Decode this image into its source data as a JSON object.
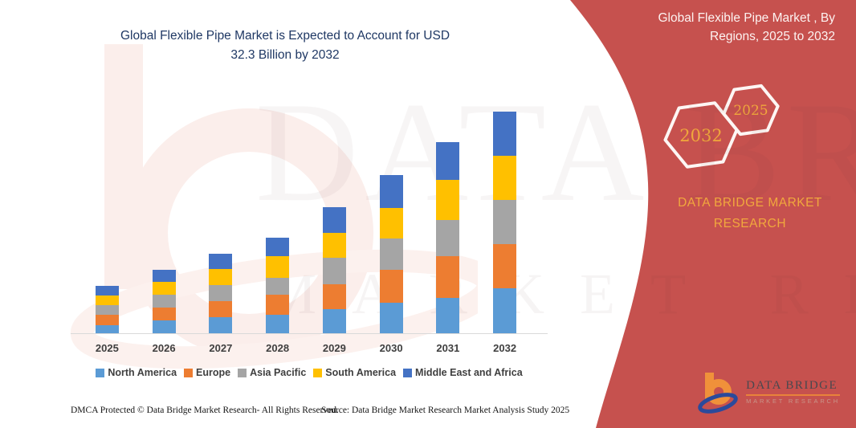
{
  "page": {
    "title_line1": "Global Flexible Pipe Market is Expected to Account for USD",
    "title_line2": "32.3 Billion by 2032"
  },
  "banner": {
    "heading_line1": "Global Flexible Pipe Market , By",
    "heading_line2": "Regions, 2025 to 2032",
    "hex_back_label": "2032",
    "hex_front_label": "2025",
    "brand_line1": "DATA BRIDGE MARKET",
    "brand_line2": "RESEARCH",
    "background_color": "#c6514e",
    "accent_text_color": "#f0a73c"
  },
  "chart_data": {
    "type": "bar",
    "stacked": true,
    "title": "Global Flexible Pipe Market is Expected to Account for USD 32.3 Billion by 2032",
    "unit": "USD Billion",
    "categories": [
      "2025",
      "2026",
      "2027",
      "2028",
      "2029",
      "2030",
      "2031",
      "2032"
    ],
    "series": [
      {
        "name": "North America",
        "color": "#5B9BD5",
        "values": [
          1.2,
          1.9,
          2.3,
          2.7,
          3.5,
          4.4,
          5.2,
          6.5
        ]
      },
      {
        "name": "Europe",
        "color": "#ED7D31",
        "values": [
          1.5,
          1.8,
          2.4,
          2.9,
          3.7,
          4.8,
          6.0,
          6.5
        ]
      },
      {
        "name": "Asia Pacific",
        "color": "#A5A5A5",
        "values": [
          1.4,
          1.9,
          2.3,
          2.5,
          3.8,
          4.6,
          5.3,
          6.4
        ]
      },
      {
        "name": "South America",
        "color": "#FFC000",
        "values": [
          1.4,
          1.9,
          2.3,
          3.1,
          3.6,
          4.5,
          5.8,
          6.5
        ]
      },
      {
        "name": "Middle East and Africa",
        "color": "#4472C4",
        "values": [
          1.4,
          1.8,
          2.3,
          2.7,
          3.8,
          4.8,
          5.5,
          6.4
        ]
      }
    ],
    "totals": [
      6.9,
      9.3,
      11.6,
      13.9,
      18.4,
      23.1,
      27.8,
      32.3
    ],
    "ylim": [
      0,
      33
    ],
    "gridlines": false,
    "axis_labels_visible": false,
    "legend_position": "bottom"
  },
  "footer": {
    "left": "DMCA Protected © Data Bridge Market Research- All Rights Reserved.",
    "right": "Source: Data Bridge Market Research Market Analysis Study 2025"
  },
  "logo": {
    "name": "DATA BRIDGE",
    "subtitle": "MARKET RESEARCH"
  },
  "watermark": {
    "line1": "DATA BRIDGE",
    "line2": "MARKET RESEARCH"
  }
}
